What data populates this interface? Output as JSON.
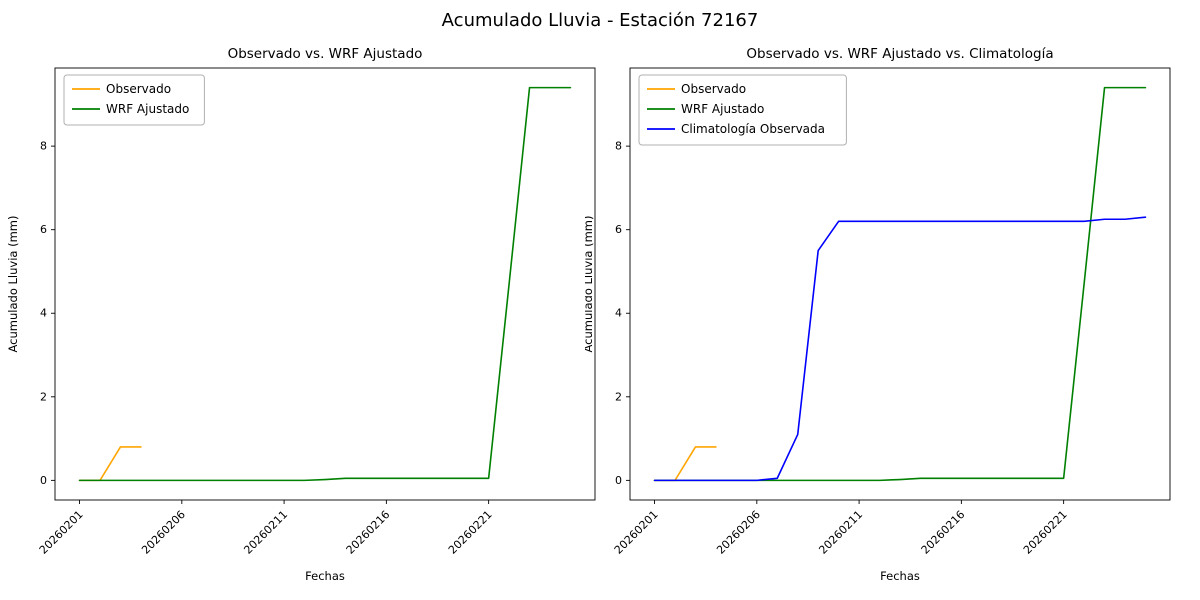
{
  "figure": {
    "suptitle": "Acumulado Lluvia - Estación 72167"
  },
  "chart_data": [
    {
      "type": "line",
      "title": "Observado vs. WRF Ajustado",
      "xlabel": "Fechas",
      "ylabel": "Acumulado Lluvia (mm)",
      "x_dates": [
        "20260201",
        "20260202",
        "20260203",
        "20260204",
        "20260205",
        "20260206",
        "20260207",
        "20260208",
        "20260209",
        "20260210",
        "20260211",
        "20260212",
        "20260213",
        "20260214",
        "20260215",
        "20260216",
        "20260217",
        "20260218",
        "20260219",
        "20260220",
        "20260221",
        "20260222",
        "20260223",
        "20260224",
        "20260225"
      ],
      "xtick_positions": [
        0,
        5,
        10,
        15,
        20
      ],
      "xtick_labels": [
        "20260201",
        "20260206",
        "20260211",
        "20260216",
        "20260221"
      ],
      "yticks": [
        0,
        2,
        4,
        6,
        8
      ],
      "ylim": [
        -0.47,
        9.87
      ],
      "legend_position": "upper-left",
      "grid": false,
      "series": [
        {
          "name": "Observado",
          "color": "#FFA500",
          "values": [
            0,
            0,
            0.8,
            0.8,
            null,
            null,
            null,
            null,
            null,
            null,
            null,
            null,
            null,
            null,
            null,
            null,
            null,
            null,
            null,
            null,
            null,
            null,
            null,
            null,
            null
          ]
        },
        {
          "name": "WRF Ajustado",
          "color": "#008000",
          "values": [
            0,
            0,
            0,
            0,
            0,
            0,
            0,
            0,
            0,
            0,
            0,
            0,
            0.02,
            0.05,
            0.05,
            0.05,
            0.05,
            0.05,
            0.05,
            0.05,
            0.05,
            4.7,
            9.4,
            9.4,
            9.4
          ]
        }
      ]
    },
    {
      "type": "line",
      "title": "Observado vs. WRF Ajustado vs. Climatología",
      "xlabel": "Fechas",
      "ylabel": "Acumulado Lluvia (mm)",
      "x_dates": [
        "20260201",
        "20260202",
        "20260203",
        "20260204",
        "20260205",
        "20260206",
        "20260207",
        "20260208",
        "20260209",
        "20260210",
        "20260211",
        "20260212",
        "20260213",
        "20260214",
        "20260215",
        "20260216",
        "20260217",
        "20260218",
        "20260219",
        "20260220",
        "20260221",
        "20260222",
        "20260223",
        "20260224",
        "20260225"
      ],
      "xtick_positions": [
        0,
        5,
        10,
        15,
        20
      ],
      "xtick_labels": [
        "20260201",
        "20260206",
        "20260211",
        "20260216",
        "20260221"
      ],
      "yticks": [
        0,
        2,
        4,
        6,
        8
      ],
      "ylim": [
        -0.47,
        9.87
      ],
      "legend_position": "upper-left",
      "grid": false,
      "series": [
        {
          "name": "Observado",
          "color": "#FFA500",
          "values": [
            0,
            0,
            0.8,
            0.8,
            null,
            null,
            null,
            null,
            null,
            null,
            null,
            null,
            null,
            null,
            null,
            null,
            null,
            null,
            null,
            null,
            null,
            null,
            null,
            null,
            null
          ]
        },
        {
          "name": "WRF Ajustado",
          "color": "#008000",
          "values": [
            0,
            0,
            0,
            0,
            0,
            0,
            0,
            0,
            0,
            0,
            0,
            0,
            0.02,
            0.05,
            0.05,
            0.05,
            0.05,
            0.05,
            0.05,
            0.05,
            0.05,
            4.7,
            9.4,
            9.4,
            9.4
          ]
        },
        {
          "name": "Climatología Observada",
          "color": "#0000FF",
          "values": [
            0,
            0,
            0,
            0,
            0,
            0,
            0.05,
            1.1,
            5.5,
            6.2,
            6.2,
            6.2,
            6.2,
            6.2,
            6.2,
            6.2,
            6.2,
            6.2,
            6.2,
            6.2,
            6.2,
            6.2,
            6.25,
            6.25,
            6.3
          ]
        }
      ]
    }
  ]
}
